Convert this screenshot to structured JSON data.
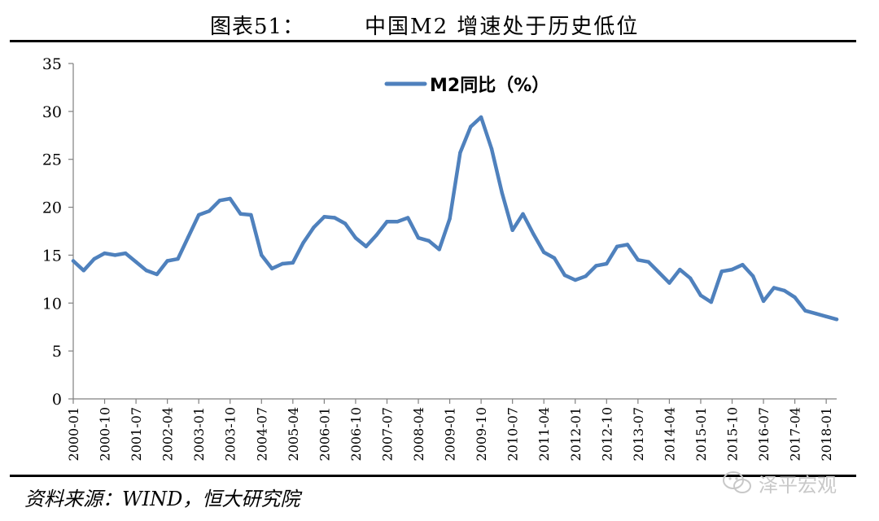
{
  "header": {
    "figure_label": "图表51：",
    "title_text": "中国M2 增速处于历史低位"
  },
  "footer": {
    "source": "资料来源：WIND，恒大研究院",
    "watermark_text": "泽平宏观",
    "watermark_icon": "wechat-icon"
  },
  "colors": {
    "series": "#4F81BD",
    "axis": "#808080"
  },
  "chart_data": {
    "type": "line",
    "title": "图表51：中国M2 增速处于历史低位",
    "legend": {
      "position": "top-center",
      "entries": [
        "M2同比（%）"
      ]
    },
    "ylim": [
      0,
      35
    ],
    "yticks": [
      0,
      5,
      10,
      15,
      20,
      25,
      30,
      35
    ],
    "xticks": [
      "2000-01",
      "2000-10",
      "2001-07",
      "2002-04",
      "2003-01",
      "2003-10",
      "2004-07",
      "2005-04",
      "2006-01",
      "2006-10",
      "2007-07",
      "2008-04",
      "2009-01",
      "2009-10",
      "2010-07",
      "2011-04",
      "2012-01",
      "2012-10",
      "2013-07",
      "2014-04",
      "2015-01",
      "2015-10",
      "2016-07",
      "2017-04",
      "2018-01"
    ],
    "grid": false,
    "series": [
      {
        "name": "M2同比（%）",
        "x": [
          "2000-01",
          "2000-04",
          "2000-07",
          "2000-10",
          "2001-01",
          "2001-04",
          "2001-07",
          "2001-10",
          "2002-01",
          "2002-04",
          "2002-07",
          "2002-10",
          "2003-01",
          "2003-04",
          "2003-07",
          "2003-10",
          "2004-01",
          "2004-04",
          "2004-07",
          "2004-10",
          "2005-01",
          "2005-04",
          "2005-07",
          "2005-10",
          "2006-01",
          "2006-04",
          "2006-07",
          "2006-10",
          "2007-01",
          "2007-04",
          "2007-07",
          "2007-10",
          "2008-01",
          "2008-04",
          "2008-07",
          "2008-10",
          "2009-01",
          "2009-04",
          "2009-07",
          "2009-10",
          "2010-01",
          "2010-04",
          "2010-07",
          "2010-10",
          "2011-01",
          "2011-04",
          "2011-07",
          "2011-10",
          "2012-01",
          "2012-04",
          "2012-07",
          "2012-10",
          "2013-01",
          "2013-04",
          "2013-07",
          "2013-10",
          "2014-01",
          "2014-04",
          "2014-07",
          "2014-10",
          "2015-01",
          "2015-04",
          "2015-07",
          "2015-10",
          "2016-01",
          "2016-04",
          "2016-07",
          "2016-10",
          "2017-01",
          "2017-04",
          "2017-07",
          "2017-10",
          "2018-01",
          "2018-04"
        ],
        "values": [
          14.4,
          13.4,
          14.6,
          15.2,
          15.0,
          15.2,
          14.3,
          13.4,
          13.0,
          14.4,
          14.6,
          16.9,
          19.2,
          19.6,
          20.7,
          20.9,
          19.3,
          19.2,
          15.0,
          13.6,
          14.1,
          14.2,
          16.3,
          17.9,
          19.0,
          18.9,
          18.3,
          16.8,
          15.9,
          17.1,
          18.5,
          18.5,
          18.9,
          16.8,
          16.5,
          15.6,
          18.8,
          25.7,
          28.4,
          29.4,
          26.1,
          21.5,
          17.6,
          19.3,
          17.2,
          15.3,
          14.7,
          12.9,
          12.4,
          12.8,
          13.9,
          14.1,
          15.9,
          16.1,
          14.5,
          14.3,
          13.2,
          12.1,
          13.5,
          12.6,
          10.8,
          10.1,
          13.3,
          13.5,
          14.0,
          12.8,
          10.2,
          11.6,
          11.3,
          10.6,
          9.2,
          8.9,
          8.6,
          8.3
        ]
      }
    ]
  }
}
